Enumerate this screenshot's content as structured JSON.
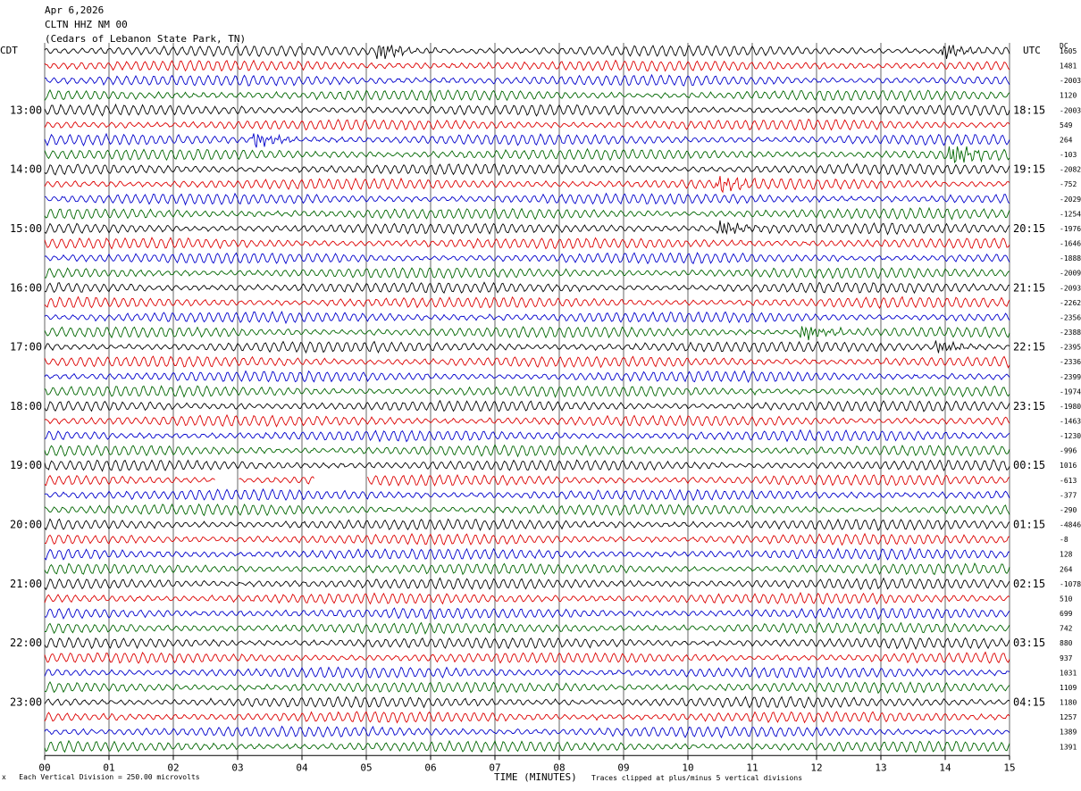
{
  "header": {
    "date": "Apr 6,2026",
    "station": "CLTN HHZ NM 00",
    "location": "(Cedars of Lebanon State Park, TN)"
  },
  "labels": {
    "left_timezone": "CDT",
    "right_timezone": "UTC",
    "dc_label": "DC",
    "xlabel": "TIME (MINUTES)",
    "scale_note": "Each Vertical Division =  250.00 microvolts",
    "clip_note": "Traces clipped at plus/minus 5 vertical divisions",
    "scale_mark": "x"
  },
  "colors": {
    "trace_cycle": [
      "#000000",
      "#dd0000",
      "#0000cc",
      "#006600"
    ],
    "grid": "#000000"
  },
  "chart_data": {
    "type": "line",
    "title": "CLTN HHZ NM 00",
    "xlabel": "TIME (MINUTES)",
    "xlim": [
      0,
      15
    ],
    "x_ticks": [
      "00",
      "01",
      "02",
      "03",
      "04",
      "05",
      "06",
      "07",
      "08",
      "09",
      "10",
      "11",
      "12",
      "13",
      "14",
      "15"
    ],
    "left_time_labels": [
      "13:00",
      "14:00",
      "15:00",
      "16:00",
      "17:00",
      "18:00",
      "19:00",
      "20:00",
      "21:00",
      "22:00",
      "23:00"
    ],
    "right_time_labels": [
      "18:15",
      "19:15",
      "20:15",
      "21:15",
      "22:15",
      "23:15",
      "00:15",
      "01:15",
      "02:15",
      "03:15",
      "04:15"
    ],
    "trace_count": 48,
    "traces_per_hour": 4,
    "dc_offsets": [
      "1605",
      "1481",
      "-2003",
      "1120",
      "-2003",
      "549",
      "264",
      "-103",
      "-2082",
      "-752",
      "-2029",
      "-1254",
      "-1976",
      "-1646",
      "-1888",
      "-2009",
      "-2093",
      "-2262",
      "-2356",
      "-2388",
      "-2395",
      "-2336",
      "-2399",
      "-1974",
      "-1980",
      "-1463",
      "-1230",
      "-996",
      "1016",
      "-613",
      "-377",
      "-290",
      "-4846",
      "-8",
      "128",
      "264",
      "-1078",
      "510",
      "699",
      "742",
      "880",
      "937",
      "1031",
      "1109",
      "1180",
      "1257",
      "1389",
      "1391"
    ],
    "events": [
      {
        "trace": 0,
        "minute": 5.2,
        "amp": 1.6
      },
      {
        "trace": 0,
        "minute": 14.0,
        "amp": 1.2
      },
      {
        "trace": 6,
        "minute": 3.3,
        "amp": 1.3
      },
      {
        "trace": 7,
        "minute": 14.1,
        "amp": 2.2
      },
      {
        "trace": 9,
        "minute": 10.5,
        "amp": 1.5
      },
      {
        "trace": 12,
        "minute": 10.5,
        "amp": 1.4
      },
      {
        "trace": 19,
        "minute": 11.8,
        "amp": 1.6
      },
      {
        "trace": 20,
        "minute": 13.9,
        "amp": 1.1
      }
    ],
    "gaps": [
      {
        "trace": 29,
        "from": 2.65,
        "to": 3.0
      },
      {
        "trace": 29,
        "from": 4.2,
        "to": 5.0
      }
    ]
  }
}
